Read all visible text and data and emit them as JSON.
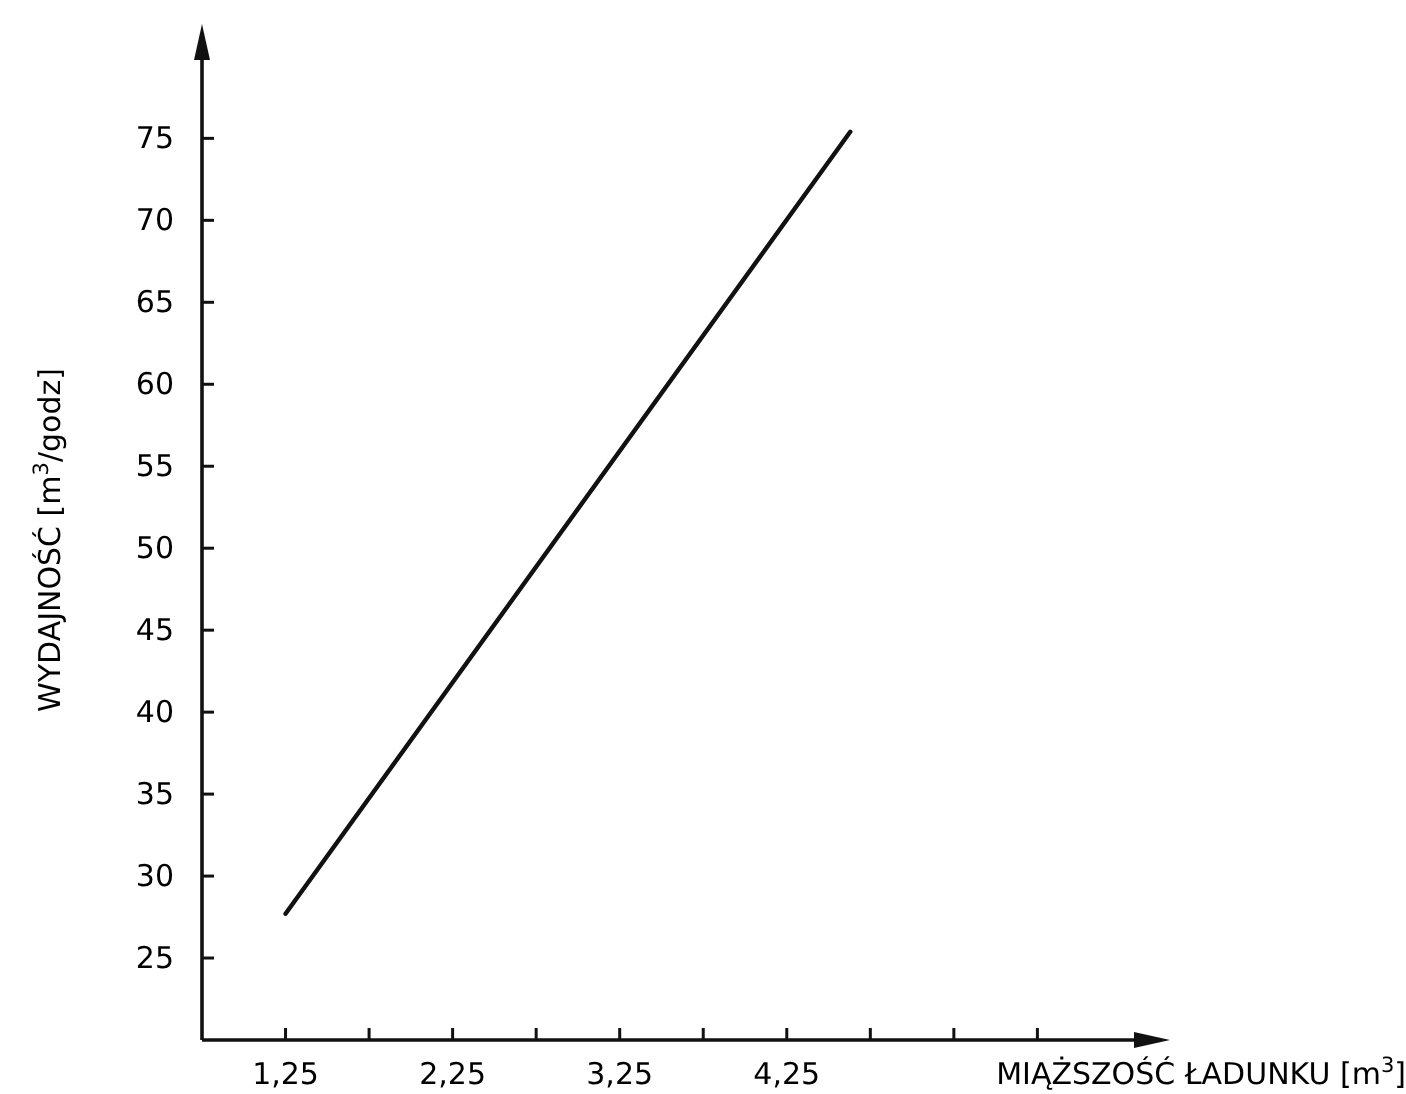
{
  "chart_data": {
    "type": "line",
    "xlabel": "MIĄŻSZOŚĆ ŁADUNKU [m$^{3}$]",
    "ylabel": "WYDAJNOŚĆ [m$^{3}$/godz]",
    "xlim": [
      0.75,
      6.4
    ],
    "ylim": [
      20,
      81
    ],
    "xticks": [
      {
        "value": 1.25,
        "label": "1,25"
      },
      {
        "value": 1.75,
        "label": null
      },
      {
        "value": 2.25,
        "label": "2,25"
      },
      {
        "value": 2.75,
        "label": null
      },
      {
        "value": 3.25,
        "label": "3,25"
      },
      {
        "value": 3.75,
        "label": null
      },
      {
        "value": 4.25,
        "label": "4,25"
      },
      {
        "value": 4.75,
        "label": null
      },
      {
        "value": 5.25,
        "label": null
      },
      {
        "value": 5.75,
        "label": null
      }
    ],
    "yticks": [
      25,
      30,
      35,
      40,
      45,
      50,
      55,
      60,
      65,
      70,
      75
    ],
    "series": [
      {
        "color": "#111111",
        "x": [
          1.25,
          4.63
        ],
        "values": [
          27.7,
          75.4
        ]
      }
    ],
    "grid": false,
    "marker": "none",
    "line_style": "solid"
  }
}
